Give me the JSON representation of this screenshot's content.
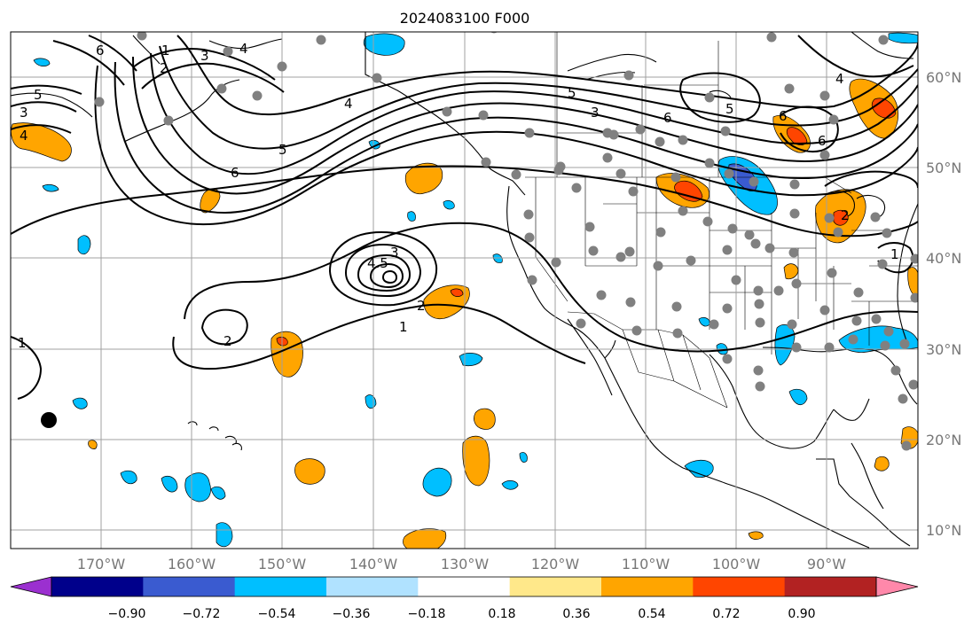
{
  "title": "2024083100 F000",
  "map": {
    "lat_labels": [
      "60°N",
      "50°N",
      "40°N",
      "30°N",
      "20°N",
      "10°N"
    ],
    "lon_labels": [
      "170°W",
      "160°W",
      "150°W",
      "140°W",
      "130°W",
      "120°W",
      "110°W",
      "100°W",
      "90°W"
    ],
    "contour_labels": [
      {
        "text": "6",
        "ref": "far-west"
      },
      {
        "text": "5",
        "ref": "far-west"
      },
      {
        "text": "3",
        "ref": "far-west"
      },
      {
        "text": "4",
        "ref": "far-west"
      },
      {
        "text": "1",
        "ref": "bering"
      },
      {
        "text": "2",
        "ref": "bering"
      },
      {
        "text": "3",
        "ref": "bering"
      },
      {
        "text": "4",
        "ref": "bering"
      },
      {
        "text": "6",
        "ref": "gulf"
      },
      {
        "text": "5",
        "ref": "gulf"
      },
      {
        "text": "4",
        "ref": "gulf"
      },
      {
        "text": "5",
        "ref": "canada"
      },
      {
        "text": "3",
        "ref": "canada"
      },
      {
        "text": "6",
        "ref": "canada"
      },
      {
        "text": "5",
        "ref": "canada"
      },
      {
        "text": "6",
        "ref": "canada"
      },
      {
        "text": "6",
        "ref": "canada"
      },
      {
        "text": "4",
        "ref": "northeast"
      },
      {
        "text": "2",
        "ref": "northeast"
      },
      {
        "text": "1",
        "ref": "northeast"
      },
      {
        "text": "4.5",
        "ref": "low"
      },
      {
        "text": "3",
        "ref": "low"
      },
      {
        "text": "2",
        "ref": "low"
      },
      {
        "text": "2",
        "ref": "pacific"
      },
      {
        "text": "1",
        "ref": "pacific"
      },
      {
        "text": "1",
        "ref": "west-edge"
      }
    ]
  },
  "colorbar": {
    "labels": [
      "−0.90",
      "−0.72",
      "−0.54",
      "−0.36",
      "−0.18",
      "0.18",
      "0.36",
      "0.54",
      "0.72",
      "0.90"
    ],
    "colors": [
      "#9b30d0",
      "#00008b",
      "#3a5bd0",
      "#00bfff",
      "#b0e2ff",
      "#ffffff",
      "#ffe88a",
      "#ffa500",
      "#ff4500",
      "#b22222",
      "#ff88aa"
    ]
  },
  "colors": {
    "orange": "#ffa500",
    "red_orange": "#ff4500",
    "cyan": "#00bfff",
    "blue": "#3a5bd0",
    "station_dot": "#808080",
    "grid": "#a0a0a0",
    "axis_label": "#777777"
  },
  "stations": [
    [
      160,
      40
    ],
    [
      362,
      45
    ],
    [
      557,
      32
    ],
    [
      870,
      42
    ],
    [
      996,
      45
    ],
    [
      257,
      58
    ],
    [
      318,
      75
    ],
    [
      425,
      88
    ],
    [
      112,
      115
    ],
    [
      250,
      100
    ],
    [
      290,
      108
    ],
    [
      709,
      85
    ],
    [
      190,
      136
    ],
    [
      545,
      130
    ],
    [
      597,
      150
    ],
    [
      504,
      126
    ],
    [
      685,
      150
    ],
    [
      692,
      152
    ],
    [
      722,
      146
    ],
    [
      744,
      160
    ],
    [
      770,
      158
    ],
    [
      800,
      110
    ],
    [
      818,
      148
    ],
    [
      890,
      100
    ],
    [
      930,
      108
    ],
    [
      940,
      135
    ],
    [
      548,
      183
    ],
    [
      582,
      197
    ],
    [
      632,
      188
    ],
    [
      630,
      192
    ],
    [
      685,
      178
    ],
    [
      700,
      196
    ],
    [
      714,
      216
    ],
    [
      650,
      212
    ],
    [
      762,
      200
    ],
    [
      800,
      184
    ],
    [
      822,
      196
    ],
    [
      850,
      205
    ],
    [
      896,
      208
    ],
    [
      930,
      175
    ],
    [
      596,
      242
    ],
    [
      597,
      268
    ],
    [
      665,
      256
    ],
    [
      745,
      262
    ],
    [
      770,
      238
    ],
    [
      798,
      250
    ],
    [
      826,
      258
    ],
    [
      845,
      265
    ],
    [
      868,
      280
    ],
    [
      895,
      285
    ],
    [
      627,
      296
    ],
    [
      669,
      283
    ],
    [
      700,
      290
    ],
    [
      710,
      284
    ],
    [
      742,
      300
    ],
    [
      779,
      294
    ],
    [
      820,
      282
    ],
    [
      852,
      275
    ],
    [
      896,
      241
    ],
    [
      935,
      246
    ],
    [
      945,
      262
    ],
    [
      987,
      245
    ],
    [
      1000,
      263
    ],
    [
      600,
      316
    ],
    [
      678,
      333
    ],
    [
      711,
      341
    ],
    [
      763,
      346
    ],
    [
      820,
      348
    ],
    [
      830,
      316
    ],
    [
      855,
      328
    ],
    [
      856,
      343
    ],
    [
      878,
      328
    ],
    [
      898,
      320
    ],
    [
      938,
      308
    ],
    [
      968,
      330
    ],
    [
      995,
      298
    ],
    [
      1032,
      292
    ],
    [
      1032,
      336
    ],
    [
      655,
      365
    ],
    [
      718,
      373
    ],
    [
      764,
      376
    ],
    [
      805,
      366
    ],
    [
      857,
      364
    ],
    [
      893,
      366
    ],
    [
      930,
      350
    ],
    [
      966,
      362
    ],
    [
      988,
      360
    ],
    [
      1002,
      374
    ],
    [
      898,
      392
    ],
    [
      935,
      392
    ],
    [
      962,
      383
    ],
    [
      998,
      390
    ],
    [
      1020,
      388
    ],
    [
      820,
      405
    ],
    [
      855,
      418
    ],
    [
      857,
      436
    ],
    [
      1010,
      418
    ],
    [
      1030,
      434
    ],
    [
      1018,
      450
    ],
    [
      1022,
      503
    ]
  ],
  "black_dot": [
    55,
    474
  ]
}
